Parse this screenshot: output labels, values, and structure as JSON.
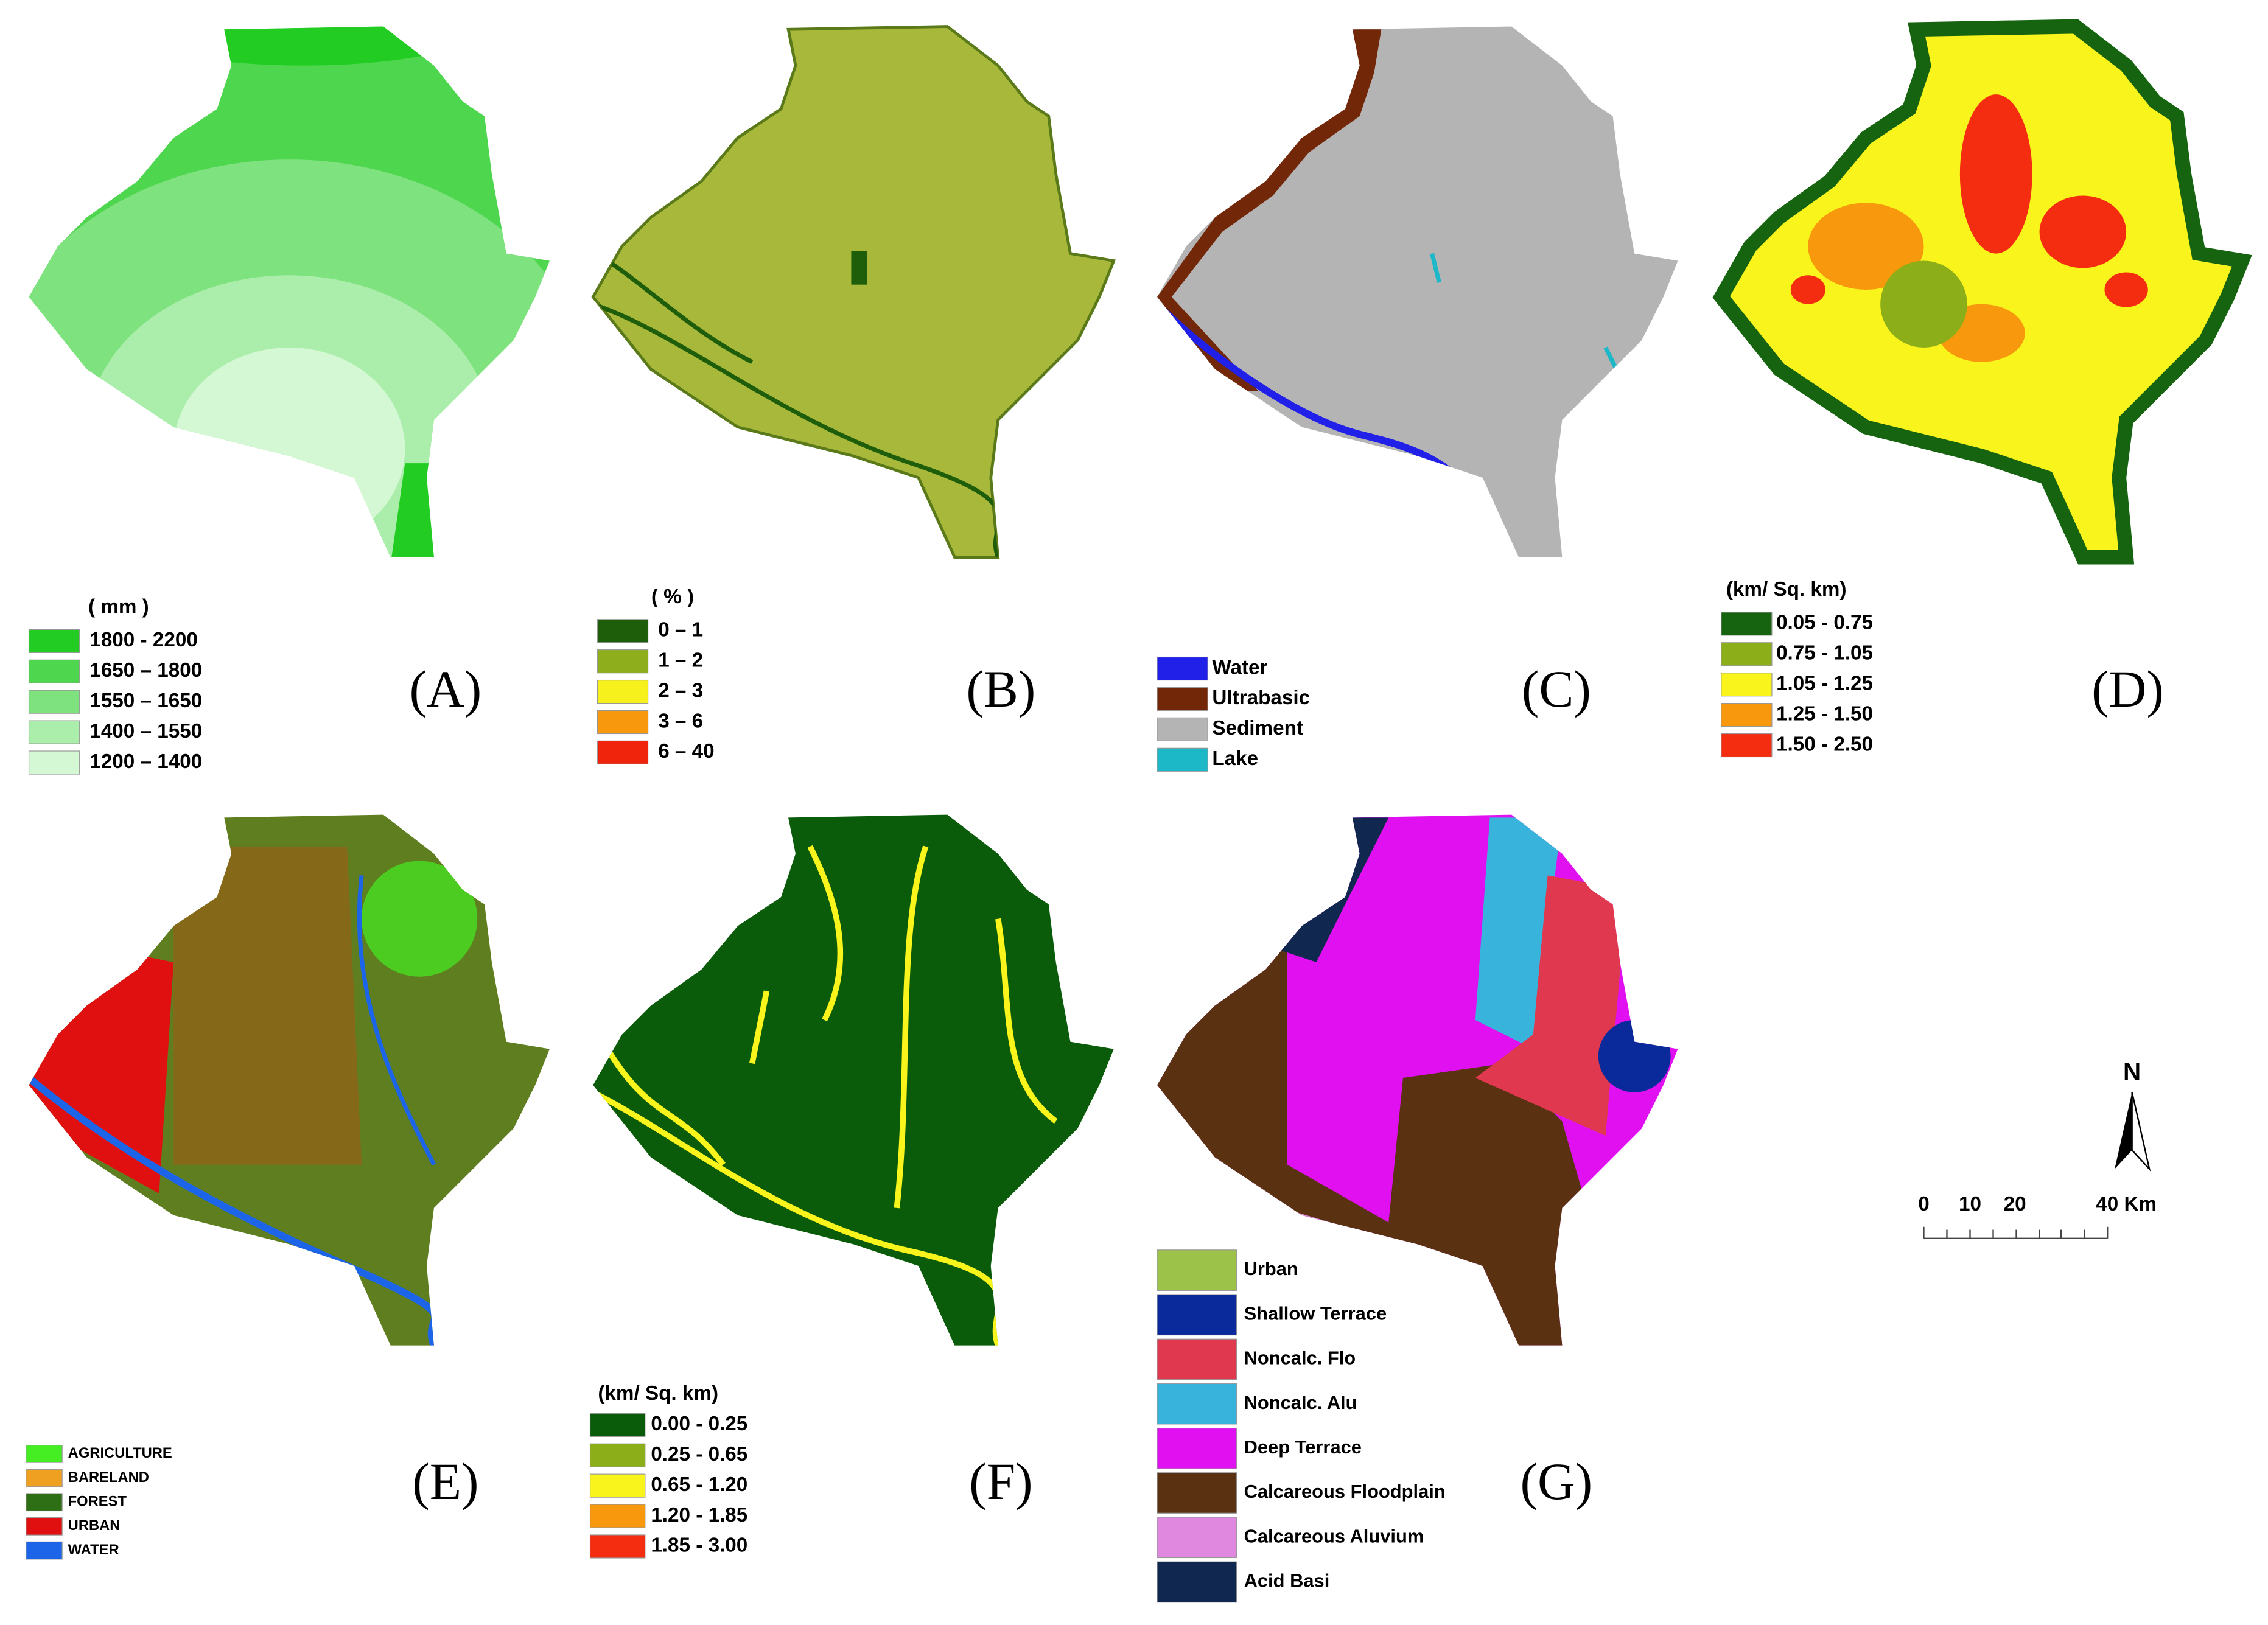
{
  "panels": [
    {
      "label": "(A)",
      "legend_title": "( mm )",
      "legend": [
        {
          "label": "1800 - 2200",
          "color": "#22cc22"
        },
        {
          "label": "1650 – 1800",
          "color": "#4fd64f"
        },
        {
          "label": "1550 – 1650",
          "color": "#7ee27e"
        },
        {
          "label": "1400 – 1550",
          "color": "#abeeab"
        },
        {
          "label": "1200 – 1400",
          "color": "#d4f8d4"
        }
      ]
    },
    {
      "label": "(B)",
      "legend_title": "( % )",
      "legend": [
        {
          "label": "0 – 1",
          "color": "#1e5e0a"
        },
        {
          "label": "1 – 2",
          "color": "#8fae1c"
        },
        {
          "label": "2 – 3",
          "color": "#f6f01c"
        },
        {
          "label": "3 – 6",
          "color": "#f8980c"
        },
        {
          "label": "6 – 40",
          "color": "#f0240c"
        }
      ]
    },
    {
      "label": "(C)",
      "legend": [
        {
          "label": "Water",
          "color": "#2020e8"
        },
        {
          "label": "Ultrabasic",
          "color": "#722808"
        },
        {
          "label": "Sediment",
          "color": "#b4b4b4"
        },
        {
          "label": "Lake",
          "color": "#1cb8c8"
        }
      ]
    },
    {
      "label": "(D)",
      "legend_title": "(km/ Sq. km)",
      "legend": [
        {
          "label": "0.05 - 0.75",
          "color": "#166410"
        },
        {
          "label": "0.75 - 1.05",
          "color": "#8cae18"
        },
        {
          "label": "1.05 - 1.25",
          "color": "#f8f41c"
        },
        {
          "label": "1.25 - 1.50",
          "color": "#f8980c"
        },
        {
          "label": "1.50 - 2.50",
          "color": "#f42c10"
        }
      ]
    },
    {
      "label": "(E)",
      "legend": [
        {
          "label": "AGRICULTURE",
          "color": "#44ee22"
        },
        {
          "label": "BARELAND",
          "color": "#f0a020"
        },
        {
          "label": "FOREST",
          "color": "#2e6e14"
        },
        {
          "label": "URBAN",
          "color": "#e01010"
        },
        {
          "label": "WATER",
          "color": "#1c64e8"
        }
      ]
    },
    {
      "label": "(F)",
      "legend_title": "(km/ Sq. km)",
      "legend": [
        {
          "label": "0.00 - 0.25",
          "color": "#0a5c0a"
        },
        {
          "label": "0.25 - 0.65",
          "color": "#8cae18"
        },
        {
          "label": "0.65 - 1.20",
          "color": "#f8f41c"
        },
        {
          "label": "1.20 - 1.85",
          "color": "#f8980c"
        },
        {
          "label": "1.85 - 3.00",
          "color": "#f42c10"
        }
      ]
    },
    {
      "label": "(G)",
      "legend": [
        {
          "label": "Urban",
          "color": "#9dc24a"
        },
        {
          "label": "Shallow Terrace",
          "color": "#0a2a9c"
        },
        {
          "label": "Noncalc. Flo",
          "color": "#e0384e"
        },
        {
          "label": "Noncalc. Alu",
          "color": "#38b4dc"
        },
        {
          "label": "Deep Terrace",
          "color": "#e010f0"
        },
        {
          "label": "Calcareous Floodplain",
          "color": "#5a3212"
        },
        {
          "label": "Calcareous Aluvium",
          "color": "#e088e0"
        },
        {
          "label": "Acid Basi",
          "color": "#102850"
        }
      ]
    }
  ],
  "north": "N",
  "scale_bar": [
    "0",
    "10",
    "20",
    "40 Km"
  ]
}
